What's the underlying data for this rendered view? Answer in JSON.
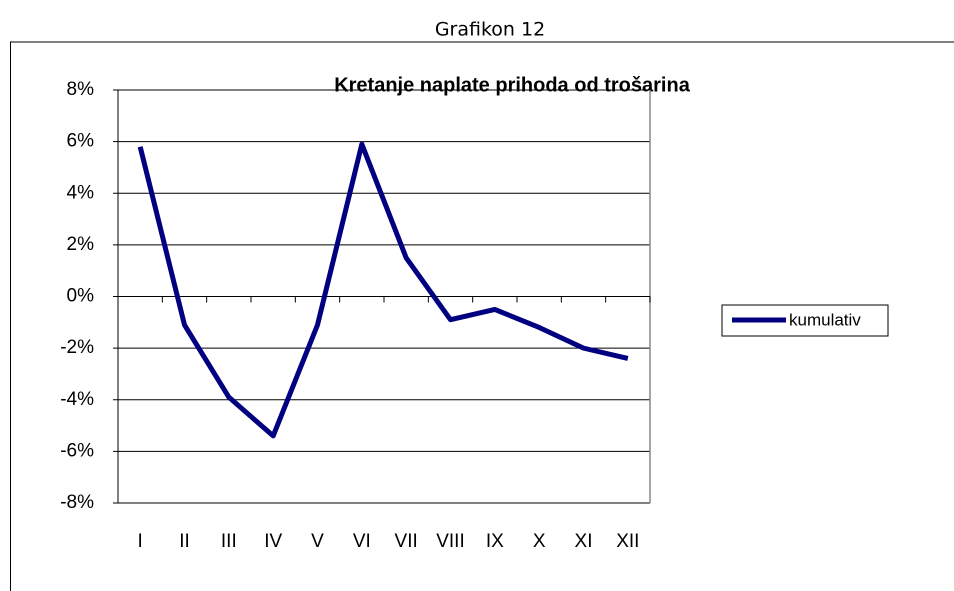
{
  "caption": "Grafikon 12",
  "chart_data": {
    "type": "line",
    "title": "Kretanje naplate prihoda od trošarina",
    "categories": [
      "I",
      "II",
      "III",
      "IV",
      "V",
      "VI",
      "VII",
      "VIII",
      "IX",
      "X",
      "XI",
      "XII"
    ],
    "series": [
      {
        "name": "kumulativ",
        "color": "#000080",
        "values": [
          5.8,
          -1.1,
          -3.9,
          -5.4,
          -1.1,
          5.9,
          1.5,
          -0.9,
          -0.5,
          -1.2,
          -2.0,
          -2.4
        ]
      }
    ],
    "ylim": [
      -8,
      8
    ],
    "yticks": [
      {
        "value": -8,
        "label": "-8%"
      },
      {
        "value": -6,
        "label": "-6%"
      },
      {
        "value": -4,
        "label": "-4%"
      },
      {
        "value": -2,
        "label": "-2%"
      },
      {
        "value": 0,
        "label": "0%"
      },
      {
        "value": 2,
        "label": "2%"
      },
      {
        "value": 4,
        "label": "4%"
      },
      {
        "value": 6,
        "label": "6%"
      },
      {
        "value": 8,
        "label": "8%"
      }
    ],
    "grid": true
  }
}
